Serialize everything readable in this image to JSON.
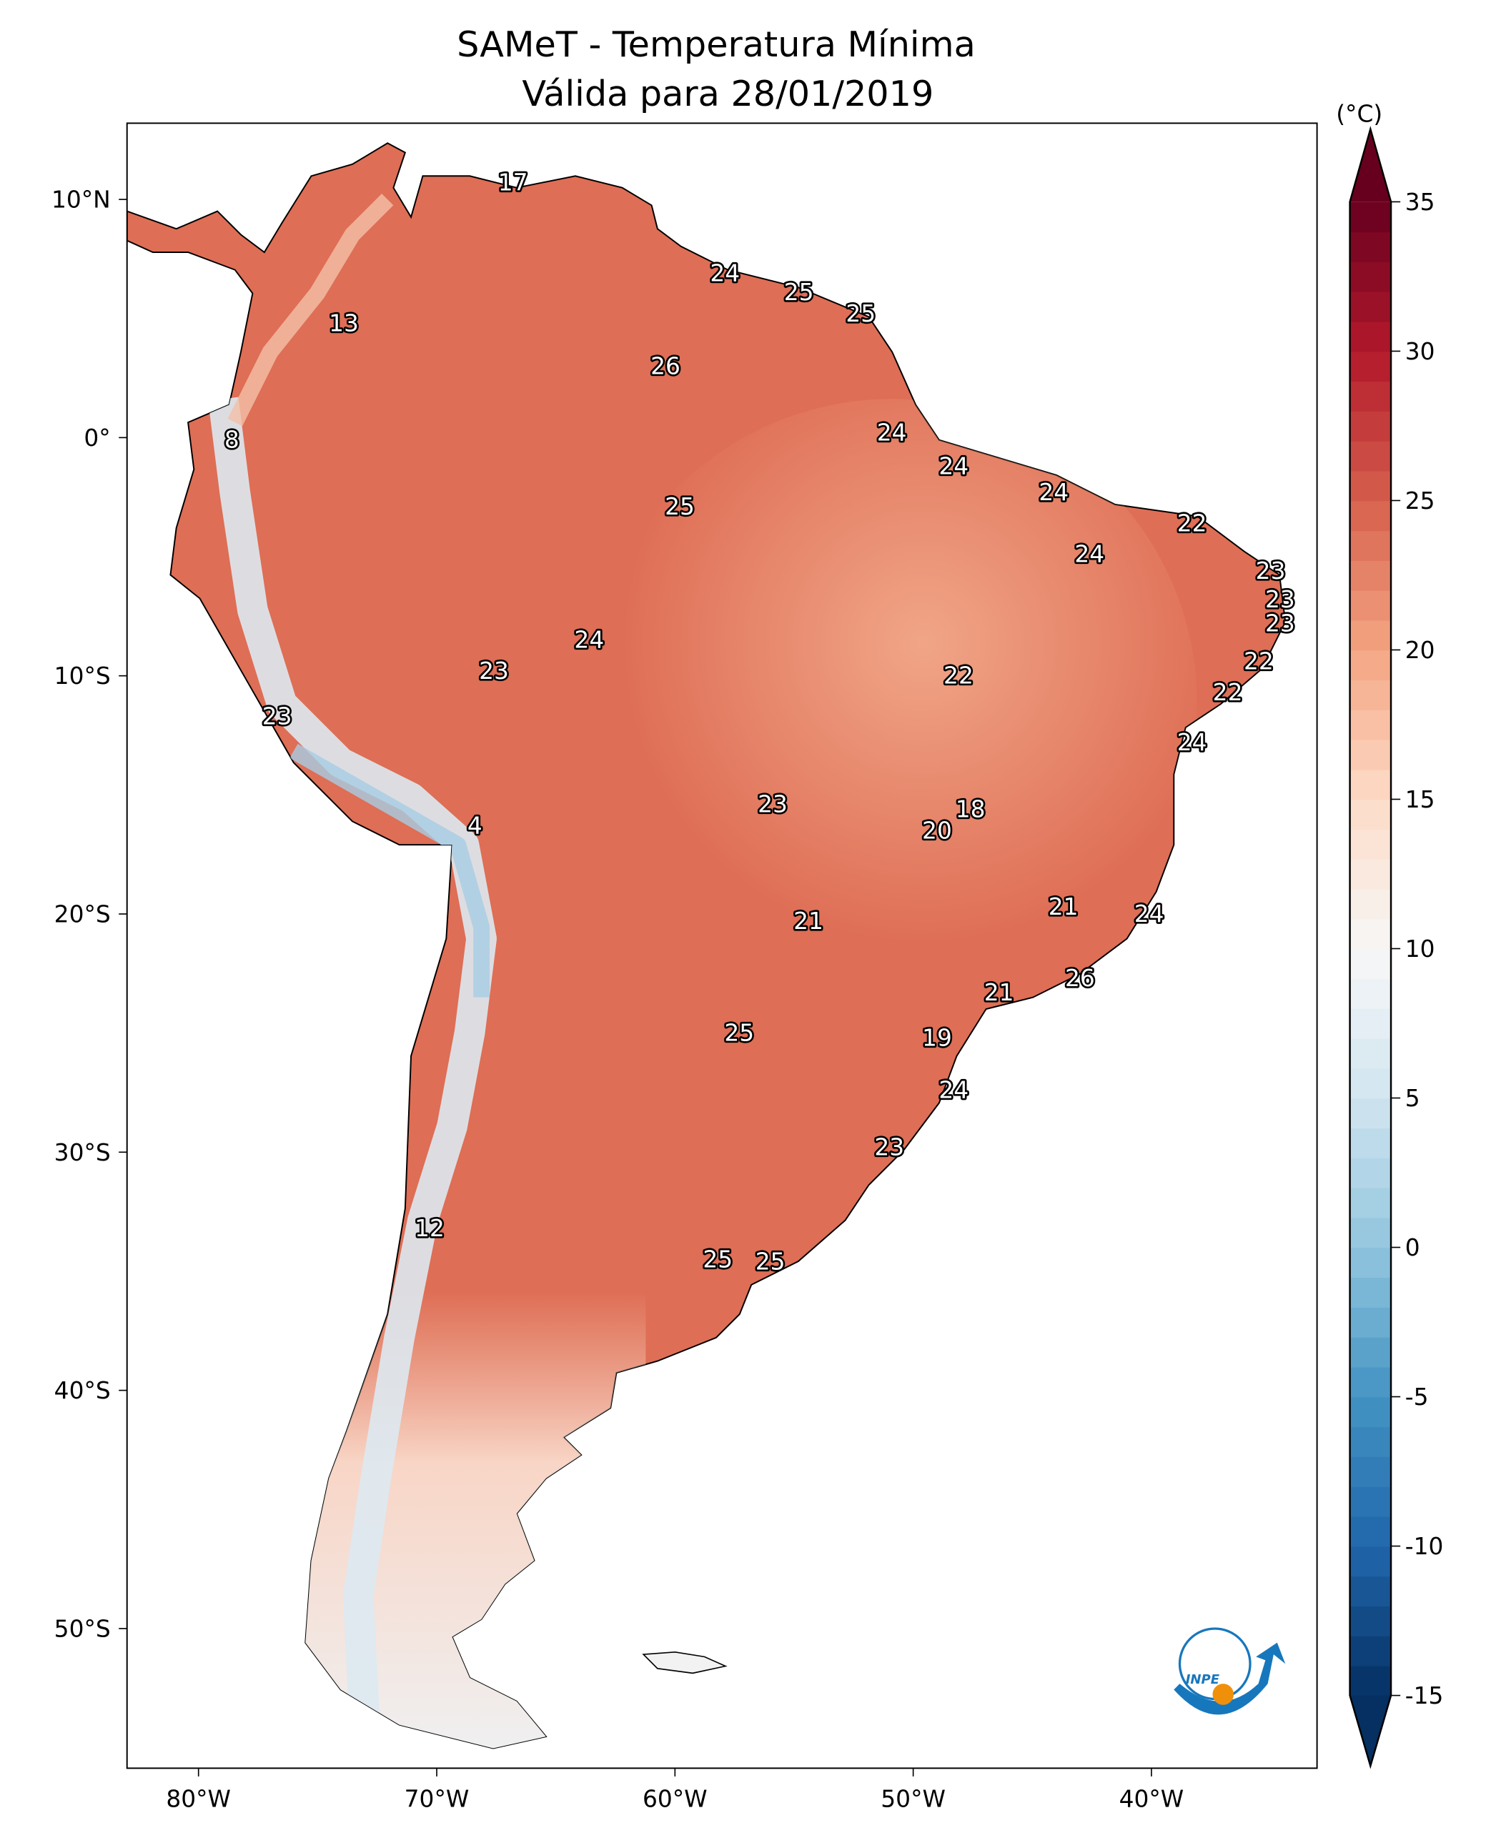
{
  "title": {
    "line1": "SAMeT - Temperatura Mínima",
    "line2": "Válida para 28/01/2019"
  },
  "map": {
    "lon_range": [
      -83,
      -33
    ],
    "lat_range": [
      -56,
      13.2
    ],
    "lon_ticks": [
      {
        "value": -80,
        "label": "80°W"
      },
      {
        "value": -70,
        "label": "70°W"
      },
      {
        "value": -60,
        "label": "60°W"
      },
      {
        "value": -50,
        "label": "50°W"
      },
      {
        "value": -40,
        "label": "40°W"
      }
    ],
    "lat_ticks": [
      {
        "value": 10,
        "label": "10°N"
      },
      {
        "value": 0,
        "label": "0°"
      },
      {
        "value": -10,
        "label": "10°S"
      },
      {
        "value": -20,
        "label": "20°S"
      },
      {
        "value": -30,
        "label": "30°S"
      },
      {
        "value": -40,
        "label": "40°S"
      },
      {
        "value": -50,
        "label": "50°S"
      }
    ],
    "station_labels": [
      {
        "lon": -66.8,
        "lat": 10.7,
        "value": "17"
      },
      {
        "lon": -57.9,
        "lat": 6.9,
        "value": "24"
      },
      {
        "lon": -54.8,
        "lat": 6.1,
        "value": "25"
      },
      {
        "lon": -52.2,
        "lat": 5.2,
        "value": "25"
      },
      {
        "lon": -73.9,
        "lat": 4.8,
        "value": "13"
      },
      {
        "lon": -60.4,
        "lat": 3.0,
        "value": "26"
      },
      {
        "lon": -78.6,
        "lat": -0.1,
        "value": "8"
      },
      {
        "lon": -50.9,
        "lat": 0.2,
        "value": "24"
      },
      {
        "lon": -48.3,
        "lat": -1.2,
        "value": "24"
      },
      {
        "lon": -44.1,
        "lat": -2.3,
        "value": "24"
      },
      {
        "lon": -59.8,
        "lat": -2.9,
        "value": "25"
      },
      {
        "lon": -38.3,
        "lat": -3.6,
        "value": "22"
      },
      {
        "lon": -42.6,
        "lat": -4.9,
        "value": "24"
      },
      {
        "lon": -35.0,
        "lat": -5.6,
        "value": "23"
      },
      {
        "lon": -34.6,
        "lat": -6.8,
        "value": "23"
      },
      {
        "lon": -34.6,
        "lat": -7.8,
        "value": "23"
      },
      {
        "lon": -63.6,
        "lat": -8.5,
        "value": "24"
      },
      {
        "lon": -67.6,
        "lat": -9.8,
        "value": "23"
      },
      {
        "lon": -35.5,
        "lat": -9.4,
        "value": "22"
      },
      {
        "lon": -48.1,
        "lat": -10.0,
        "value": "22"
      },
      {
        "lon": -36.8,
        "lat": -10.7,
        "value": "22"
      },
      {
        "lon": -76.7,
        "lat": -11.7,
        "value": "23"
      },
      {
        "lon": -38.3,
        "lat": -12.8,
        "value": "24"
      },
      {
        "lon": -55.9,
        "lat": -15.4,
        "value": "23"
      },
      {
        "lon": -47.6,
        "lat": -15.6,
        "value": "18"
      },
      {
        "lon": -68.4,
        "lat": -16.3,
        "value": "4"
      },
      {
        "lon": -49.0,
        "lat": -16.5,
        "value": "20"
      },
      {
        "lon": -43.7,
        "lat": -19.7,
        "value": "21"
      },
      {
        "lon": -54.4,
        "lat": -20.3,
        "value": "21"
      },
      {
        "lon": -40.1,
        "lat": -20.0,
        "value": "24"
      },
      {
        "lon": -43.0,
        "lat": -22.7,
        "value": "26"
      },
      {
        "lon": -46.4,
        "lat": -23.3,
        "value": "21"
      },
      {
        "lon": -57.3,
        "lat": -25.0,
        "value": "25"
      },
      {
        "lon": -49.0,
        "lat": -25.2,
        "value": "19"
      },
      {
        "lon": -48.3,
        "lat": -27.4,
        "value": "24"
      },
      {
        "lon": -51.0,
        "lat": -29.8,
        "value": "23"
      },
      {
        "lon": -70.3,
        "lat": -33.2,
        "value": "12"
      },
      {
        "lon": -58.2,
        "lat": -34.5,
        "value": "25"
      },
      {
        "lon": -56.0,
        "lat": -34.6,
        "value": "25"
      }
    ]
  },
  "colorbar": {
    "unit": "(°C)",
    "min": -15,
    "max": 35,
    "ticks": [
      "35",
      "30",
      "25",
      "20",
      "15",
      "10",
      "5",
      "0",
      "-5",
      "-10",
      "-15"
    ],
    "tick_values": [
      35,
      30,
      25,
      20,
      15,
      10,
      5,
      0,
      -5,
      -10,
      -15
    ],
    "colormap_stops": [
      "#053061",
      "#2166ac",
      "#4393c3",
      "#92c5de",
      "#d1e5f0",
      "#f7f7f7",
      "#fddbc7",
      "#f4a582",
      "#d6604d",
      "#b2182b",
      "#67001f"
    ],
    "extend": "both"
  },
  "logo": {
    "text": "INPE",
    "blue": "#1777bd",
    "orange": "#f0900a"
  }
}
